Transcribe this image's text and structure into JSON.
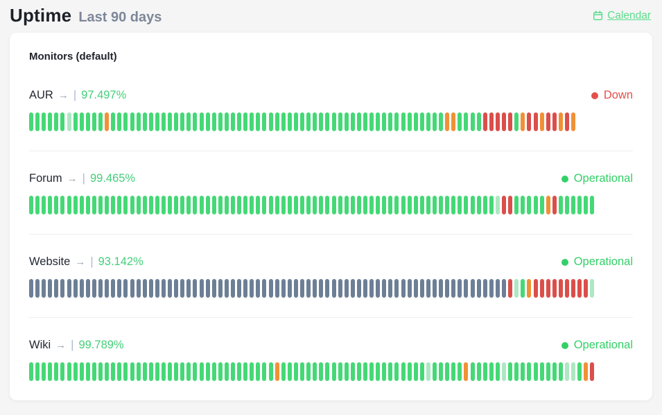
{
  "page": {
    "title": "Uptime",
    "subtitle": "Last 90 days",
    "calendar_label": "Calendar"
  },
  "card": {
    "heading": "Monitors (default)"
  },
  "colors": {
    "up": "#45d876",
    "partial": "#aee7c3",
    "degraded": "#f09136",
    "down": "#da4f4b",
    "nodata": "#6c7f95",
    "link_green": "#5cdd8b",
    "percent_green": "#43cf79",
    "operational_green": "#33d067",
    "down_red": "#e3504b"
  },
  "bar_legend": {
    "G": "up",
    "P": "partial-up",
    "O": "degraded",
    "R": "down",
    "N": "no-data"
  },
  "monitors": [
    {
      "name": "AUR",
      "arrow": "→",
      "separator": "|",
      "uptime": "97.497%",
      "status": "Down",
      "status_color": "#e3504b",
      "bars": "GGGGGGPGGGGGOGGGGGGGGGGGGGGGGGGGGGGGGGGGGGGGGGGGGGGGGGGGGGGGGGGGGGOOGGGGRRRRRGORRORRORO"
    },
    {
      "name": "Forum",
      "arrow": "→",
      "separator": "|",
      "uptime": "99.465%",
      "status": "Operational",
      "status_color": "#33d067",
      "bars": "GGGGGGGGGGGGGGGGGGGGGGGGGGGGGGGGGGGGGGGGGGGGGGGGGGGGGGGGGGGGGGGGGGGGGGGGGGPRRGGGGGORGGGGGG"
    },
    {
      "name": "Website",
      "arrow": "→",
      "separator": "|",
      "uptime": "93.142%",
      "status": "Operational",
      "status_color": "#33d067",
      "bars": "NNNNNNNNNNNNNNNNNNNNNNNNNNNNNNNNNNNNNNNNNNNNNNNNNNNNNNNNNNNNNNNNNNNNNNNNNNNNRPGORRRRRRRRRP"
    },
    {
      "name": "Wiki",
      "arrow": "→",
      "separator": "|",
      "uptime": "99.789%",
      "status": "Operational",
      "status_color": "#33d067",
      "bars": "GGGGGGGGGGGGGGGGGGGGGGGGGGGGGGGGGGGGGGGOGGGGGGGGGGGGGGGGGGGGGGGPGGGGGOGGGGGPGGGGGGGGGPPGOR"
    }
  ]
}
